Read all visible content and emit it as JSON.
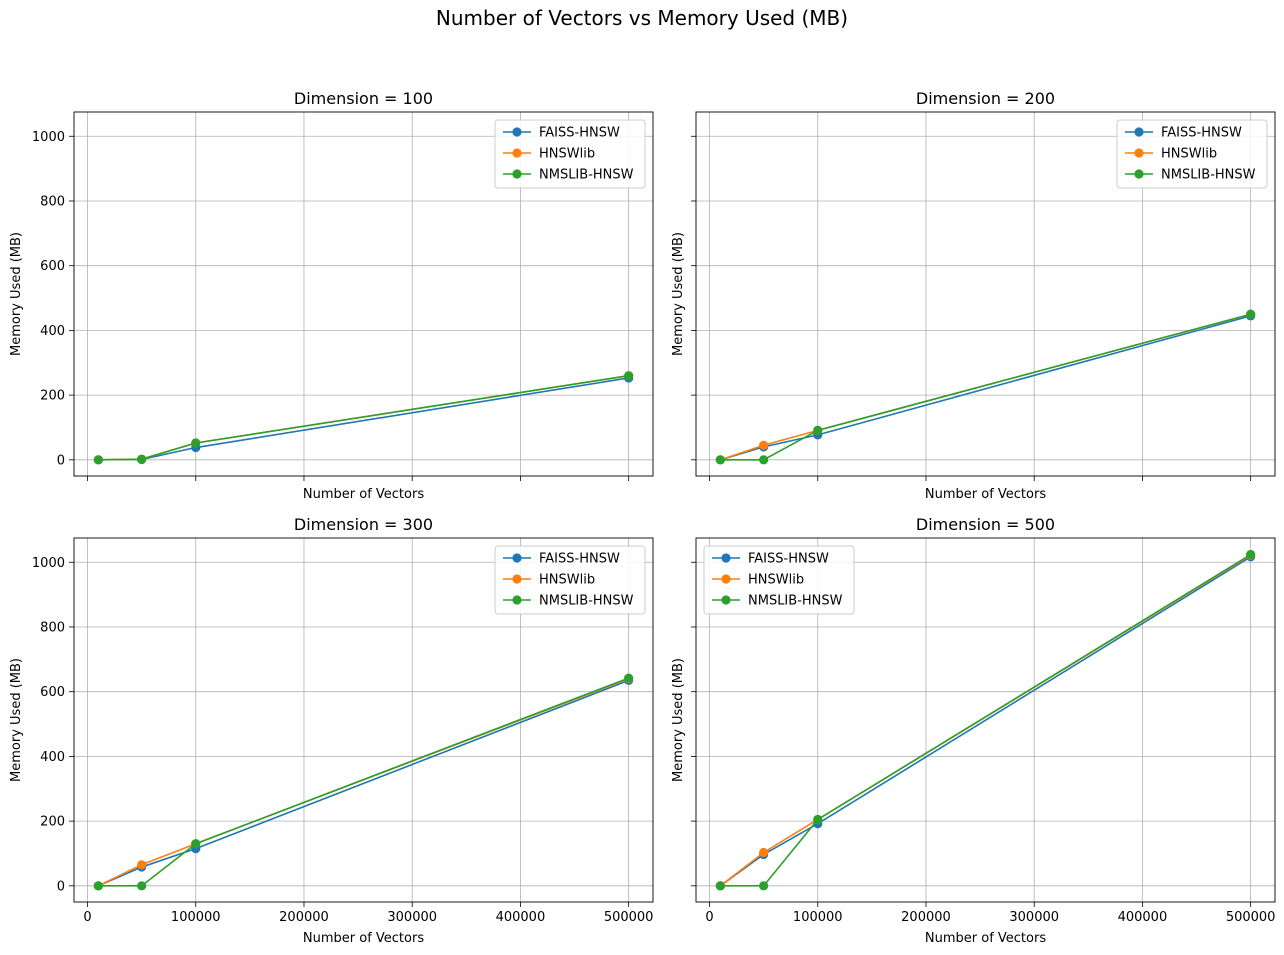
{
  "figure": {
    "suptitle": "Number of Vectors vs Memory Used (MB)"
  },
  "colors": {
    "FAISS-HNSW": "#1f77b4",
    "HNSWlib": "#ff7f0e",
    "NMSLIB-HNSW": "#2ca02c",
    "grid": "#b0b0b0"
  },
  "chart_data": [
    {
      "type": "line",
      "title": "Dimension = 100",
      "xlabel": "Number of Vectors",
      "ylabel": "Memory Used (MB)",
      "xlim": [
        -12500,
        522500
      ],
      "ylim": [
        -50,
        1075
      ],
      "xticks": [
        0,
        100000,
        200000,
        300000,
        400000,
        500000
      ],
      "yticks": [
        0,
        200,
        400,
        600,
        800,
        1000
      ],
      "show_xtick_labels": false,
      "show_ytick_labels": true,
      "grid": true,
      "legend": "top-right",
      "x": [
        10000,
        50000,
        100000,
        500000
      ],
      "series": [
        {
          "name": "FAISS-HNSW",
          "values": [
            0,
            1,
            38,
            253
          ]
        },
        {
          "name": "HNSWlib",
          "values": [
            0,
            2,
            52,
            260
          ]
        },
        {
          "name": "NMSLIB-HNSW",
          "values": [
            0,
            2,
            52,
            260
          ]
        }
      ]
    },
    {
      "type": "line",
      "title": "Dimension = 200",
      "xlabel": "Number of Vectors",
      "ylabel": "Memory Used (MB)",
      "xlim": [
        -12500,
        522500
      ],
      "ylim": [
        -50,
        1075
      ],
      "xticks": [
        0,
        100000,
        200000,
        300000,
        400000,
        500000
      ],
      "yticks": [
        0,
        200,
        400,
        600,
        800,
        1000
      ],
      "show_xtick_labels": false,
      "show_ytick_labels": false,
      "grid": true,
      "legend": "top-right",
      "x": [
        10000,
        50000,
        100000,
        500000
      ],
      "series": [
        {
          "name": "FAISS-HNSW",
          "values": [
            0,
            40,
            77,
            445
          ]
        },
        {
          "name": "HNSWlib",
          "values": [
            0,
            45,
            91,
            450
          ]
        },
        {
          "name": "NMSLIB-HNSW",
          "values": [
            0,
            0,
            91,
            450
          ]
        }
      ]
    },
    {
      "type": "line",
      "title": "Dimension = 300",
      "xlabel": "Number of Vectors",
      "ylabel": "Memory Used (MB)",
      "xlim": [
        -12500,
        522500
      ],
      "ylim": [
        -50,
        1075
      ],
      "xticks": [
        0,
        100000,
        200000,
        300000,
        400000,
        500000
      ],
      "yticks": [
        0,
        200,
        400,
        600,
        800,
        1000
      ],
      "show_xtick_labels": true,
      "show_ytick_labels": true,
      "grid": true,
      "legend": "top-right",
      "x": [
        10000,
        50000,
        100000,
        500000
      ],
      "series": [
        {
          "name": "FAISS-HNSW",
          "values": [
            0,
            58,
            115,
            635
          ]
        },
        {
          "name": "HNSWlib",
          "values": [
            0,
            65,
            130,
            640
          ]
        },
        {
          "name": "NMSLIB-HNSW",
          "values": [
            0,
            0,
            130,
            642
          ]
        }
      ]
    },
    {
      "type": "line",
      "title": "Dimension = 500",
      "xlabel": "Number of Vectors",
      "ylabel": "Memory Used (MB)",
      "xlim": [
        -12500,
        522500
      ],
      "ylim": [
        -50,
        1075
      ],
      "xticks": [
        0,
        100000,
        200000,
        300000,
        400000,
        500000
      ],
      "yticks": [
        0,
        200,
        400,
        600,
        800,
        1000
      ],
      "show_xtick_labels": true,
      "show_ytick_labels": false,
      "grid": true,
      "legend": "top-left",
      "x": [
        10000,
        50000,
        100000,
        500000
      ],
      "series": [
        {
          "name": "FAISS-HNSW",
          "values": [
            0,
            97,
            192,
            1017
          ]
        },
        {
          "name": "HNSWlib",
          "values": [
            0,
            103,
            205,
            1022
          ]
        },
        {
          "name": "NMSLIB-HNSW",
          "values": [
            0,
            0,
            205,
            1024
          ]
        }
      ]
    }
  ]
}
